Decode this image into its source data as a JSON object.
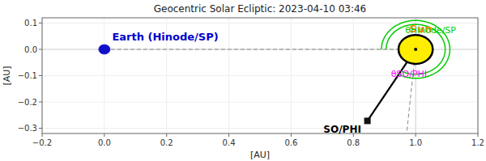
{
  "chart_data": {
    "type": "scatter",
    "title": "Geocentric Solar Ecliptic:  2023-04-10 03:46",
    "xlabel": "[AU]",
    "ylabel": "[AU]",
    "xlim": [
      -0.2,
      1.2
    ],
    "ylim": [
      -0.32,
      0.12
    ],
    "xticks": [
      {
        "value": -0.2,
        "label": "−0.2"
      },
      {
        "value": 0.0,
        "label": "0.0"
      },
      0.2,
      0.4,
      0.6,
      0.8,
      {
        "value": 1.0,
        "label": "1.0"
      },
      1.2
    ],
    "yticks": [
      {
        "value": -0.3,
        "label": "−0.3"
      },
      {
        "value": -0.2,
        "label": "−0.2"
      },
      {
        "value": -0.1,
        "label": "−0.1"
      },
      {
        "value": 0.0,
        "label": "0.0"
      },
      0.1
    ],
    "points": [
      {
        "label": "Earth (Hinode/SP)",
        "x": 0.0,
        "y": 0.0,
        "radius": 0.018,
        "color": "#1111cc",
        "label_color": "#0000cc"
      },
      {
        "label": "Sun",
        "x": 1.0,
        "y": 0.0,
        "radius": 0.055,
        "color": "#ffee00",
        "border_color": "#000000",
        "label_color": "#ff8800"
      },
      {
        "label": "SO/PHI",
        "x": 0.845,
        "y": -0.272,
        "color": "#111111",
        "label_color": "#000000"
      }
    ],
    "angles": [
      {
        "label": "θHinode/SP",
        "color": "#00cc00",
        "radii": [
          0.11,
          0.095
        ]
      },
      {
        "label": "θSO/PHI",
        "color": "#ff00ff",
        "radii": [
          0.055,
          0.045
        ]
      }
    ]
  }
}
